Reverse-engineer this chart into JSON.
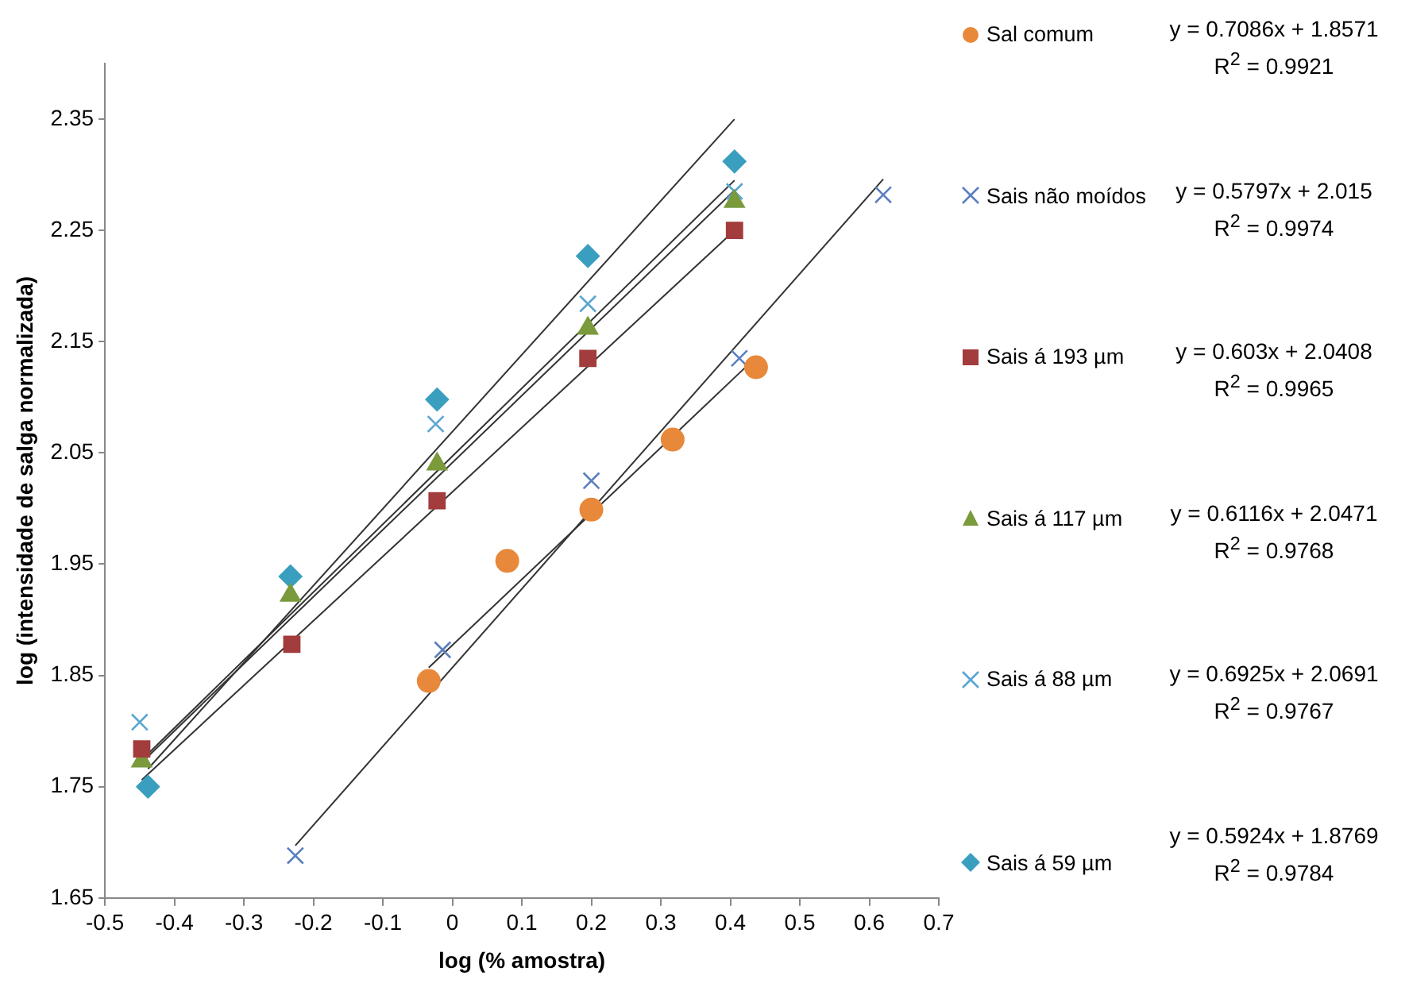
{
  "chart_data": {
    "type": "scatter",
    "xlabel": "log (% amostra)",
    "ylabel": "log (intensidade de salga normalizada)",
    "xlim": [
      -0.5,
      0.7
    ],
    "xticks": [
      -0.5,
      -0.4,
      -0.3,
      -0.2,
      -0.1,
      0,
      0.1,
      0.2,
      0.3,
      0.4,
      0.5,
      0.6,
      0.7
    ],
    "ylim": [
      1.65,
      2.4
    ],
    "yticks": [
      1.65,
      1.75,
      1.85,
      1.95,
      2.05,
      2.15,
      2.25,
      2.35
    ],
    "grid": false,
    "legend": "right",
    "series": [
      {
        "name": "Sal comum",
        "color": "#e8883a",
        "marker": "circle",
        "x": [
          -0.034,
          0.079,
          0.2,
          0.317,
          0.437
        ],
        "values": [
          1.845,
          1.953,
          1.999,
          2.062,
          2.127
        ]
      },
      {
        "name": "Sais não moídos",
        "color": "#5b7fbf",
        "marker": "cross",
        "x": [
          -0.226,
          -0.014,
          0.2,
          0.413,
          0.62
        ],
        "values": [
          1.688,
          1.873,
          2.025,
          2.135,
          2.282
        ]
      },
      {
        "name": "Sais á 193 µm",
        "color": "#a33c3c",
        "marker": "square",
        "x": [
          -0.447,
          -0.231,
          -0.022,
          0.195,
          0.406
        ],
        "values": [
          1.784,
          1.878,
          2.007,
          2.135,
          2.25
        ]
      },
      {
        "name": "Sais á 117 µm",
        "color": "#7a9a3c",
        "marker": "triangle",
        "x": [
          -0.447,
          -0.233,
          -0.022,
          0.195,
          0.406
        ],
        "values": [
          1.773,
          1.922,
          2.04,
          2.162,
          2.276
        ]
      },
      {
        "name": "Sais á 88 µm",
        "color": "#58a6d2",
        "marker": "cross",
        "x": [
          -0.45,
          -0.23,
          -0.024,
          0.195,
          0.406
        ],
        "values": [
          1.808,
          null,
          2.076,
          2.184,
          2.285
        ]
      },
      {
        "name": "Sais á 59 µm",
        "color": "#3a9fbf",
        "marker": "diamond",
        "x": [
          -0.438,
          -0.233,
          -0.022,
          0.195,
          0.406
        ],
        "values": [
          1.75,
          1.939,
          2.098,
          2.227,
          2.312
        ]
      },
      {
        "type": "line",
        "color": "#333333",
        "marker": "none",
        "x": [
          -0.438,
          0.406
        ],
        "values": [
          1.766,
          2.35
        ]
      },
      {
        "type": "line",
        "color": "#333333",
        "marker": "none",
        "x": [
          -0.45,
          0.406
        ],
        "values": [
          1.77,
          2.286
        ]
      },
      {
        "type": "line",
        "color": "#333333",
        "marker": "none",
        "x": [
          -0.447,
          0.406
        ],
        "values": [
          1.774,
          2.295
        ]
      },
      {
        "type": "line",
        "color": "#333333",
        "marker": "none",
        "x": [
          -0.447,
          0.406
        ],
        "values": [
          1.756,
          2.25
        ]
      },
      {
        "type": "line",
        "color": "#333333",
        "marker": "none",
        "x": [
          -0.226,
          0.62
        ],
        "values": [
          1.697,
          2.296
        ]
      },
      {
        "type": "line",
        "color": "#333333",
        "marker": "none",
        "x": [
          -0.034,
          0.437
        ],
        "values": [
          1.857,
          2.136
        ]
      }
    ],
    "annotations": [
      "y = 0.7086x + 1.8571",
      "R$^{2}$ = 0.9921",
      "y = 0.5797x + 2.015",
      "R$^{2}$ = 0.9974",
      "y = 0.603x + 2.0408",
      "R$^{2}$ = 0.9965",
      "y = 0.6116x + 2.0471",
      "R$^{2}$ = 0.9768",
      "y = 0.6925x + 2.0691",
      "R$^{2}$ = 0.9767",
      "y = 0.5924x + 1.8769",
      "R$^{2}$ = 0.9784"
    ]
  }
}
